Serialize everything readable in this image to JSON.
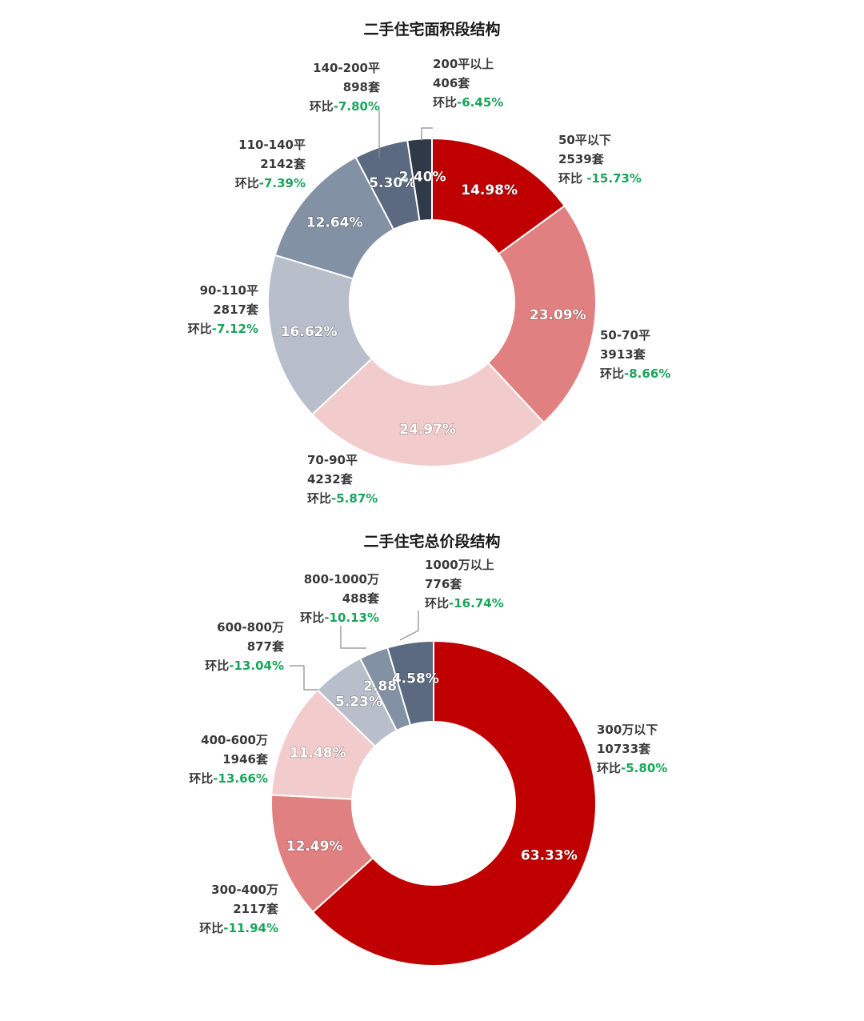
{
  "chart_data": [
    {
      "type": "pie",
      "title": "二手住宅面积段结构",
      "categories": [
        "50平以下",
        "50-70平",
        "70-90平",
        "90-110平",
        "110-140平",
        "140-200平",
        "200平以上"
      ],
      "values": [
        14.98,
        23.09,
        24.97,
        16.62,
        12.64,
        5.3,
        2.4
      ],
      "value_labels": [
        "14.98%",
        "23.09%",
        "24.97%",
        "16.62%",
        "12.64%",
        "5.30%",
        "2.40%"
      ],
      "counts": [
        "2539套",
        "3913套",
        "4232套",
        "2817套",
        "2142套",
        "898套",
        "406套"
      ],
      "mom_prefix": [
        "环比 ",
        "环比",
        "环比",
        "环比",
        "环比",
        "环比",
        "环比"
      ],
      "mom": [
        "-15.73%",
        "-8.66%",
        "-5.87%",
        "-7.12%",
        "-7.39%",
        "-7.80%",
        "-6.45%"
      ],
      "colors": [
        "#C00000",
        "#E08080",
        "#F2CCCC",
        "#B8BFCB",
        "#8391A4",
        "#5B6A80",
        "#2E3A48"
      ],
      "legend": "none"
    },
    {
      "type": "pie",
      "title": "二手住宅总价段结构",
      "categories": [
        "300万以下",
        "300-400万",
        "400-600万",
        "600-800万",
        "800-1000万",
        "1000万以上"
      ],
      "values": [
        63.33,
        12.49,
        11.48,
        5.23,
        2.88,
        4.58
      ],
      "value_labels": [
        "63.33%",
        "12.49%",
        "11.48%",
        "5.23%",
        "2.88%",
        "4.58%"
      ],
      "counts": [
        "10733套",
        "2117套",
        "1946套",
        "877套",
        "488套",
        "776套"
      ],
      "mom_prefix": [
        "环比",
        "环比",
        "环比",
        "环比",
        "环比",
        "环比"
      ],
      "mom": [
        "-5.80%",
        "-11.94%",
        "-13.66%",
        "-13.04%",
        "-10.13%",
        "-16.74%"
      ],
      "colors": [
        "#C00000",
        "#E08080",
        "#F2CCCC",
        "#B8BFCB",
        "#8391A4",
        "#5B6A80"
      ],
      "legend": "none"
    }
  ]
}
